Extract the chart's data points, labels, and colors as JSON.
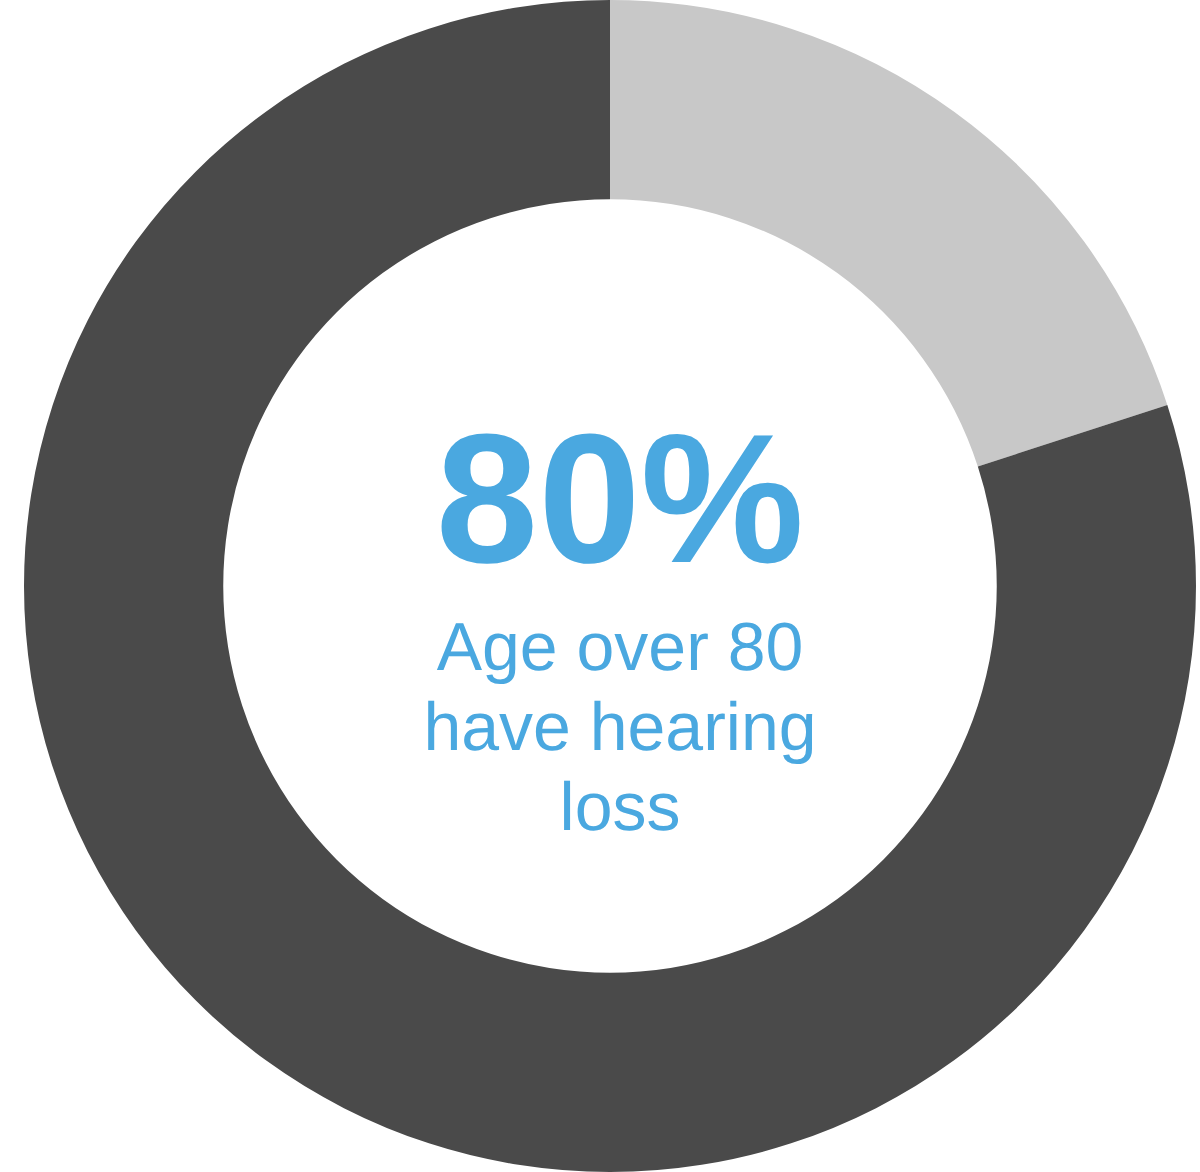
{
  "chart_data": {
    "type": "donut",
    "categories": [
      null,
      null
    ],
    "values": [
      20,
      80
    ],
    "colors": [
      "#c8c8c8",
      "#4a4a4a"
    ],
    "annotations": [
      "80%",
      "Age over 80 have hearing loss"
    ],
    "legend": false
  }
}
